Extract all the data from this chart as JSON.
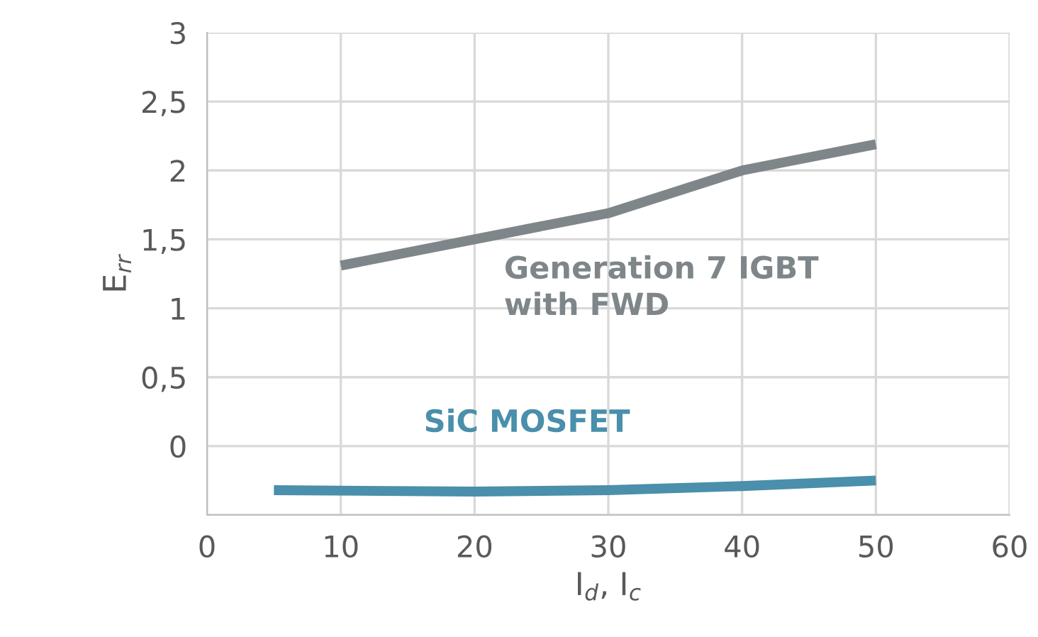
{
  "chart_data": {
    "type": "line",
    "xlabel": "I$_{d}$, I$_{c}$",
    "ylabel": "E$_{rr}$",
    "xlim": [
      0,
      60
    ],
    "xticks": [
      0,
      10,
      20,
      30,
      40,
      50,
      60
    ],
    "ylim": [
      -0.5,
      3
    ],
    "yticks": [
      {
        "value": -0.5,
        "label": null
      },
      0,
      {
        "value": 0.5,
        "label": "0,5"
      },
      1,
      {
        "value": 1.5,
        "label": "1,5"
      },
      2,
      {
        "value": 2.5,
        "label": "2,5"
      },
      3
    ],
    "grid": true,
    "legend": false,
    "line_style": "solid",
    "marker": "none",
    "series": [
      {
        "name": "Generation 7 IGBT\nwith FWD",
        "color": "#7f868a",
        "x": [
          10,
          20,
          30,
          40,
          50
        ],
        "values": [
          1.31,
          1.5,
          1.69,
          2.0,
          2.19
        ]
      },
      {
        "name": "SiC MOSFET",
        "color": "#4a8fab",
        "x": [
          5,
          20,
          30,
          40,
          50
        ],
        "values": [
          -0.32,
          -0.33,
          -0.32,
          -0.29,
          -0.25
        ]
      }
    ]
  }
}
